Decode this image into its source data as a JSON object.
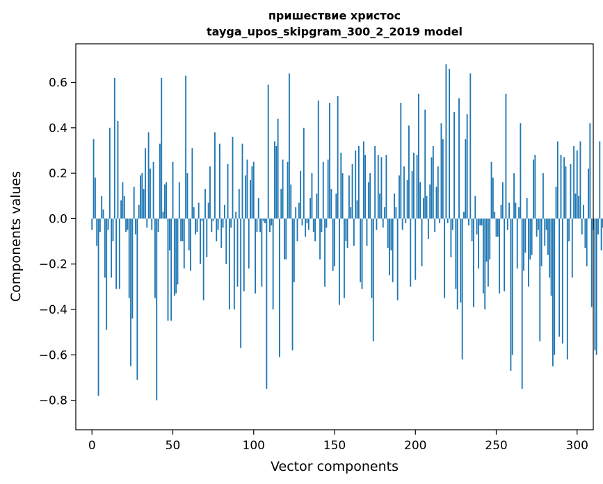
{
  "chart_data": {
    "type": "bar",
    "title": "пришествие христос",
    "subtitle": "tayga_upos_skipgram_300_2_2019 model",
    "xlabel": "Vector components",
    "ylabel": "Components values",
    "xlim": [
      -10,
      310
    ],
    "ylim": [
      -0.93,
      0.77
    ],
    "x_ticks": [
      0,
      50,
      100,
      150,
      200,
      250,
      300
    ],
    "x_tick_labels": [
      "0",
      "50",
      "100",
      "150",
      "200",
      "250",
      "300"
    ],
    "y_ticks": [
      -0.8,
      -0.6,
      -0.4,
      -0.2,
      0.0,
      0.2,
      0.4,
      0.6
    ],
    "y_tick_labels": [
      "−0.8",
      "−0.6",
      "−0.4",
      "−0.2",
      "0.0",
      "0.2",
      "0.4",
      "0.6"
    ],
    "bar_color": "#1f77b4",
    "grid": false,
    "values": [
      -0.05,
      0.35,
      0.18,
      -0.12,
      -0.78,
      -0.06,
      0.1,
      0.04,
      -0.26,
      -0.49,
      -0.05,
      0.4,
      -0.26,
      -0.1,
      0.62,
      -0.31,
      0.43,
      -0.31,
      0.08,
      0.16,
      0.1,
      -0.06,
      -0.05,
      -0.35,
      -0.65,
      -0.44,
      0.14,
      -0.07,
      -0.71,
      0.06,
      0.19,
      0.2,
      0.13,
      0.31,
      -0.04,
      0.38,
      0.22,
      -0.05,
      0.25,
      -0.35,
      -0.8,
      -0.06,
      0.33,
      0.62,
      0.03,
      0.15,
      0.16,
      -0.45,
      -0.14,
      -0.45,
      0.25,
      -0.34,
      -0.33,
      -0.29,
      0.16,
      -0.1,
      -0.1,
      -0.22,
      0.63,
      0.2,
      -0.14,
      -0.23,
      0.31,
      0.05,
      -0.07,
      -0.06,
      0.07,
      -0.2,
      -0.01,
      -0.36,
      0.13,
      -0.17,
      0.07,
      0.23,
      -0.06,
      -0.01,
      0.38,
      -0.1,
      -0.05,
      0.33,
      -0.13,
      -0.04,
      0.06,
      -0.2,
      0.24,
      -0.4,
      -0.04,
      0.36,
      -0.4,
      0.03,
      -0.3,
      0.13,
      -0.57,
      0.33,
      -0.32,
      0.19,
      0.26,
      -0.22,
      0.17,
      0.23,
      0.25,
      -0.33,
      -0.06,
      0.09,
      -0.06,
      -0.3,
      -0.01,
      -0.02,
      -0.75,
      0.59,
      -0.06,
      -0.03,
      -0.4,
      0.34,
      0.32,
      0.44,
      -0.61,
      0.13,
      0.26,
      -0.18,
      -0.18,
      0.25,
      0.64,
      0.15,
      -0.58,
      -0.28,
      0.05,
      -0.1,
      0.07,
      0.21,
      -0.03,
      0.4,
      -0.08,
      -0.02,
      -0.05,
      0.09,
      0.2,
      -0.06,
      -0.1,
      0.11,
      0.52,
      -0.18,
      -0.06,
      0.25,
      -0.3,
      -0.04,
      0.26,
      0.51,
      0.13,
      -0.23,
      -0.21,
      0.11,
      0.54,
      -0.38,
      0.29,
      0.2,
      -0.35,
      -0.1,
      -0.13,
      0.19,
      0.05,
      0.24,
      -0.12,
      0.3,
      0.08,
      0.32,
      -0.28,
      -0.31,
      0.34,
      0.28,
      -0.12,
      0.16,
      0.2,
      -0.35,
      -0.54,
      0.32,
      -0.05,
      0.28,
      0.11,
      0.27,
      -0.04,
      0.05,
      0.28,
      -0.13,
      -0.25,
      -0.14,
      -0.28,
      0.11,
      0.05,
      -0.36,
      0.19,
      0.51,
      -0.05,
      0.23,
      -0.02,
      0.17,
      0.41,
      -0.3,
      0.21,
      0.29,
      -0.27,
      0.28,
      0.55,
      0.16,
      -0.21,
      0.09,
      0.48,
      0.1,
      -0.09,
      0.15,
      0.27,
      0.32,
      -0.06,
      0.14,
      0.23,
      -0.02,
      0.42,
      0.35,
      -0.35,
      0.68,
      -0.02,
      0.66,
      -0.17,
      -0.05,
      0.47,
      -0.31,
      -0.4,
      0.53,
      -0.37,
      -0.62,
      0.03,
      0.35,
      0.46,
      -0.03,
      0.64,
      -0.1,
      -0.39,
      0.1,
      -0.07,
      -0.22,
      -0.03,
      -0.03,
      -0.33,
      -0.4,
      -0.19,
      -0.3,
      -0.18,
      0.25,
      0.18,
      0.03,
      -0.08,
      -0.08,
      -0.33,
      0.06,
      0.16,
      -0.32,
      0.55,
      -0.05,
      0.07,
      -0.67,
      -0.6,
      0.2,
      0.07,
      -0.22,
      0.05,
      0.42,
      -0.75,
      -0.23,
      -0.15,
      0.09,
      -0.3,
      -0.18,
      -0.16,
      0.26,
      0.28,
      -0.08,
      -0.05,
      -0.54,
      -0.21,
      0.2,
      -0.12,
      -0.05,
      -0.16,
      -0.26,
      -0.34,
      -0.65,
      -0.6,
      0.14,
      0.34,
      -0.52,
      0.28,
      -0.55,
      0.27,
      0.23,
      -0.62,
      -0.1,
      0.24,
      -0.26,
      0.32,
      0.11,
      0.3,
      0.1,
      0.34,
      -0.07,
      0.06,
      -0.13,
      -0.21,
      0.22,
      0.42,
      -0.39,
      -0.05,
      -0.58,
      -0.6,
      -0.07,
      0.34,
      -0.14,
      -0.04,
      -0.06,
      -0.01
    ]
  }
}
